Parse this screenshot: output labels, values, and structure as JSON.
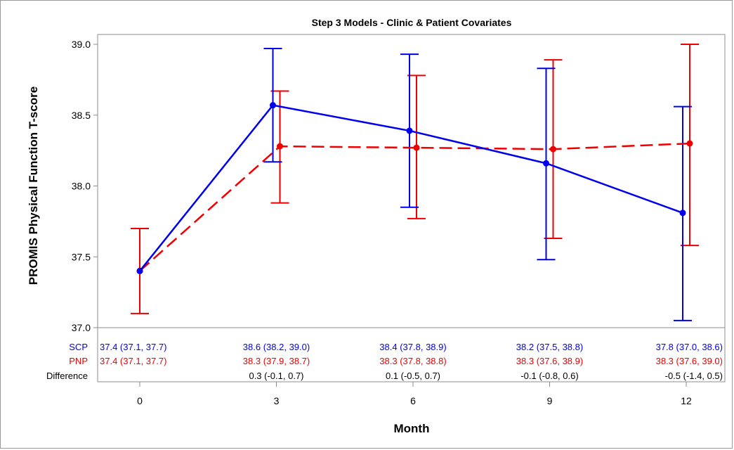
{
  "chart_data": {
    "type": "line",
    "title": "Step 3 Models - Clinic & Patient Covariates",
    "xlabel": "Month",
    "ylabel": "PROMIS Physical Function T-score",
    "x": [
      0,
      3,
      6,
      9,
      12
    ],
    "x_tick_labels": [
      "0",
      "3",
      "6",
      "9",
      "12"
    ],
    "ylim": [
      37.0,
      39.0
    ],
    "y_ticks": [
      37.0,
      37.5,
      38.0,
      38.5,
      39.0
    ],
    "y_tick_labels": [
      "37.0",
      "37.5",
      "38.0",
      "38.5",
      "39.0"
    ],
    "grid": false,
    "series": [
      {
        "name": "SCP",
        "color": "#0000ee",
        "line_style": "solid",
        "values": [
          37.4,
          38.57,
          38.39,
          38.16,
          37.81
        ],
        "lower": [
          37.1,
          38.17,
          37.85,
          37.48,
          37.05
        ],
        "upper": [
          37.7,
          38.97,
          38.93,
          38.83,
          38.56
        ]
      },
      {
        "name": "PNP",
        "color": "#ee0000",
        "line_style": "dashed",
        "values": [
          37.4,
          38.28,
          38.27,
          38.26,
          38.3
        ],
        "lower": [
          37.1,
          37.88,
          37.77,
          37.63,
          37.58
        ],
        "upper": [
          37.7,
          38.67,
          38.78,
          38.89,
          39.0
        ]
      }
    ],
    "table": {
      "rows": [
        {
          "label": "SCP",
          "color": "#0000ee",
          "cells": [
            "37.4 (37.1, 37.7)",
            "38.6 (38.2, 39.0)",
            "38.4 (37.8, 38.9)",
            "38.2 (37.5, 38.8)",
            "37.8 (37.0, 38.6)"
          ]
        },
        {
          "label": "PNP",
          "color": "#ee0000",
          "cells": [
            "37.4 (37.1, 37.7)",
            "38.3 (37.9, 38.7)",
            "38.3 (37.8, 38.8)",
            "38.3 (37.6, 38.9)",
            "38.3 (37.6, 39.0)"
          ]
        },
        {
          "label": "Difference",
          "color": "#000000",
          "cells": [
            "",
            "0.3 (-0.1, 0.7)",
            "0.1 (-0.5, 0.7)",
            "-0.1 (-0.8, 0.6)",
            "-0.5 (-1.4, 0.5)"
          ]
        }
      ]
    }
  }
}
